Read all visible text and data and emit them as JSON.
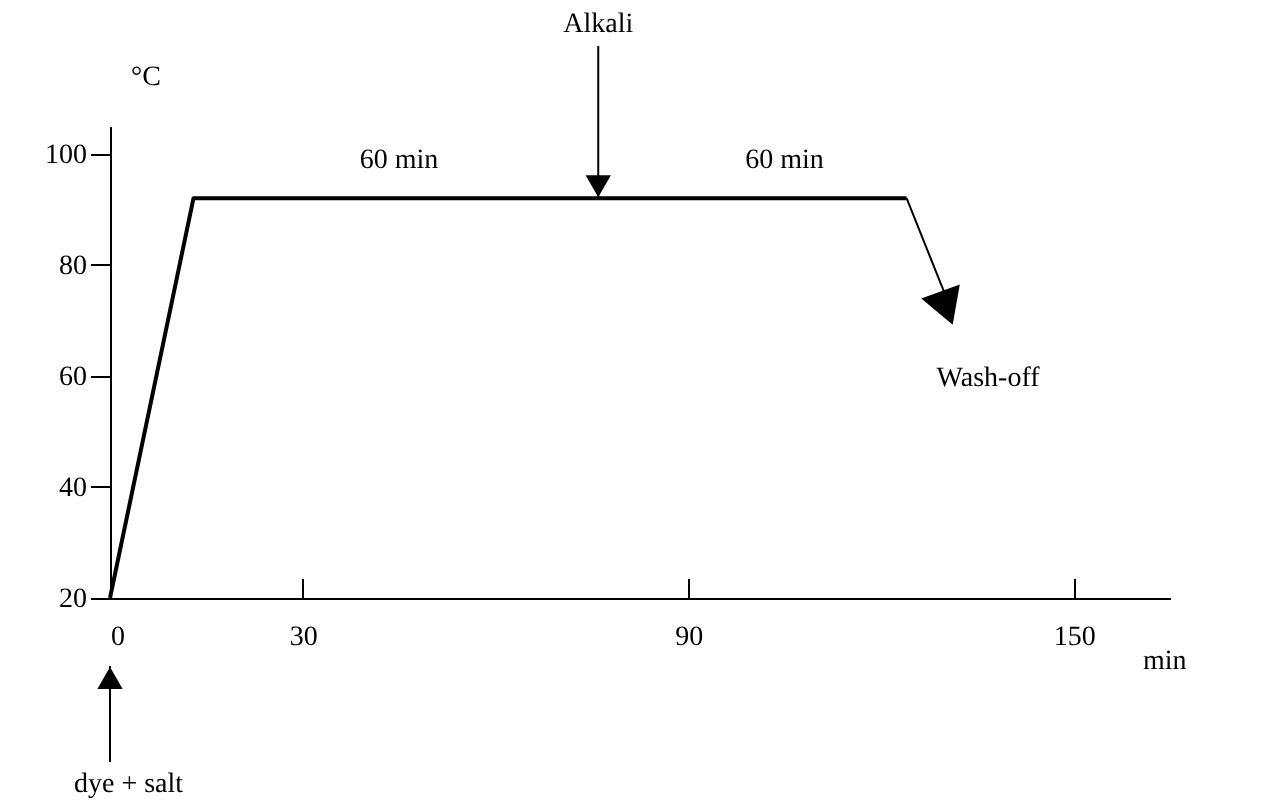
{
  "chart_data": {
    "type": "line",
    "xlabel": "min",
    "ylabel": "°C",
    "x": [
      0,
      13,
      124
    ],
    "values": [
      20,
      92,
      92
    ],
    "color": "#000000",
    "xlim": [
      0,
      165
    ],
    "xticks": [
      0,
      30,
      90,
      150
    ],
    "ylim": [
      20,
      105
    ],
    "yticks": [
      20,
      40,
      60,
      80,
      100
    ],
    "grid": false,
    "annotations": [
      {
        "text": "Alkali",
        "x": 76,
        "y": 92
      },
      {
        "text": "60 min",
        "x": 45,
        "y": 92
      },
      {
        "text": "60 min",
        "x": 105,
        "y": 92
      },
      "Wash-off",
      "dye + salt"
    ]
  }
}
